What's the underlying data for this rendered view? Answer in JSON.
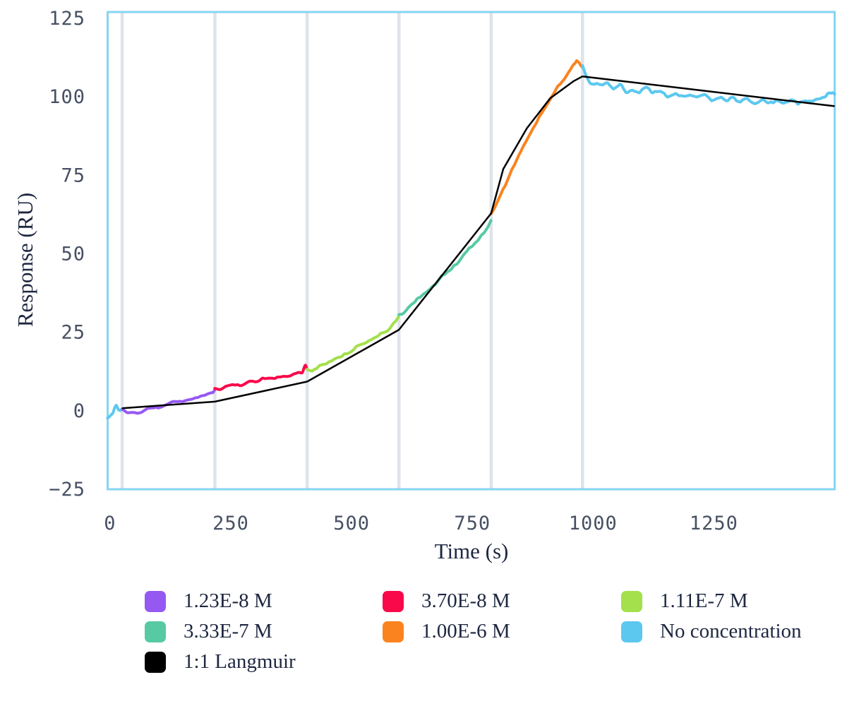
{
  "chart_data": {
    "type": "line",
    "title": "",
    "xlabel": "Time (s)",
    "ylabel": "Response (RU)",
    "xlim": [
      -5,
      1500
    ],
    "ylim": [
      -25,
      127
    ],
    "x_ticks": [
      {
        "value": 0,
        "label": "0"
      },
      {
        "value": 250,
        "label": "250"
      },
      {
        "value": 500,
        "label": "500"
      },
      {
        "value": 750,
        "label": "750"
      },
      {
        "value": 1000,
        "label": "1000"
      },
      {
        "value": 1250,
        "label": "1250"
      }
    ],
    "y_ticks": [
      {
        "value": 125,
        "label": "125"
      },
      {
        "value": 100,
        "label": "100"
      },
      {
        "value": 75,
        "label": "75"
      },
      {
        "value": 50,
        "label": "50"
      },
      {
        "value": 25,
        "label": "25"
      },
      {
        "value": 0,
        "label": "0"
      },
      {
        "value": -25,
        "label": "−25"
      }
    ],
    "grid": "vertical-injection-markers",
    "grid_times": [
      25,
      217,
      408,
      598,
      789,
      978
    ],
    "legend_position": "bottom",
    "legend": [
      {
        "label": "1.23E-8 M",
        "color": "#9559f2"
      },
      {
        "label": "3.70E-8 M",
        "color": "#f9094a"
      },
      {
        "label": "1.11E-7 M",
        "color": "#a3e04b"
      },
      {
        "label": "3.33E-7 M",
        "color": "#57c9a3"
      },
      {
        "label": "1.00E-6 M",
        "color": "#fa831f"
      },
      {
        "label": "No concentration",
        "color": "#5cc8ef"
      },
      {
        "label": "1:1 Langmuir",
        "color": "#000000"
      }
    ],
    "series": [
      {
        "name": "No concentration",
        "segment": "baseline",
        "color": "#5cc8ef",
        "noise_amp": 0.5,
        "noise_seed": 11,
        "points": [
          [
            -5,
            -2.3
          ],
          [
            0,
            -1.6
          ],
          [
            6,
            -0.6
          ],
          [
            10,
            1.2
          ],
          [
            13,
            1.7
          ],
          [
            17,
            0.5
          ],
          [
            21,
            0.1
          ],
          [
            25,
            0.5
          ]
        ]
      },
      {
        "name": "1.23E-8 M",
        "segment": "injection-1",
        "color": "#9559f2",
        "noise_amp": 0.55,
        "noise_seed": 21,
        "points": [
          [
            25,
            0.4
          ],
          [
            35,
            -0.9
          ],
          [
            50,
            -1.1
          ],
          [
            65,
            -0.4
          ],
          [
            80,
            0.6
          ],
          [
            95,
            1.3
          ],
          [
            110,
            1.6
          ],
          [
            125,
            2.4
          ],
          [
            140,
            3.3
          ],
          [
            150,
            3.0
          ],
          [
            165,
            3.9
          ],
          [
            180,
            4.4
          ],
          [
            195,
            4.7
          ],
          [
            205,
            5.3
          ],
          [
            213,
            5.6
          ],
          [
            217,
            6.6
          ]
        ]
      },
      {
        "name": "3.70E-8 M",
        "segment": "injection-2",
        "color": "#f9094a",
        "noise_amp": 0.5,
        "noise_seed": 31,
        "points": [
          [
            217,
            7.1
          ],
          [
            228,
            6.9
          ],
          [
            240,
            7.6
          ],
          [
            255,
            8.0
          ],
          [
            270,
            8.2
          ],
          [
            285,
            9.0
          ],
          [
            300,
            9.4
          ],
          [
            315,
            10.2
          ],
          [
            330,
            10.6
          ],
          [
            345,
            10.7
          ],
          [
            360,
            11.3
          ],
          [
            375,
            11.4
          ],
          [
            388,
            11.9
          ],
          [
            398,
            12.1
          ],
          [
            404,
            14.8
          ],
          [
            408,
            13.4
          ]
        ]
      },
      {
        "name": "1.11E-7 M",
        "segment": "injection-3",
        "color": "#a3e04b",
        "noise_amp": 0.6,
        "noise_seed": 41,
        "points": [
          [
            408,
            13.2
          ],
          [
            418,
            12.5
          ],
          [
            430,
            13.8
          ],
          [
            445,
            15.2
          ],
          [
            460,
            16.3
          ],
          [
            475,
            17.4
          ],
          [
            490,
            18.6
          ],
          [
            505,
            19.7
          ],
          [
            520,
            20.9
          ],
          [
            535,
            22.1
          ],
          [
            550,
            23.3
          ],
          [
            565,
            24.6
          ],
          [
            578,
            26.3
          ],
          [
            588,
            28.0
          ],
          [
            594,
            29.3
          ],
          [
            598,
            30.3
          ]
        ]
      },
      {
        "name": "3.33E-7 M",
        "segment": "injection-4",
        "color": "#57c9a3",
        "noise_amp": 0.6,
        "noise_seed": 51,
        "points": [
          [
            598,
            30.5
          ],
          [
            608,
            31.4
          ],
          [
            622,
            33.3
          ],
          [
            636,
            35.2
          ],
          [
            650,
            37.2
          ],
          [
            664,
            39.2
          ],
          [
            678,
            41.2
          ],
          [
            692,
            43.3
          ],
          [
            706,
            45.4
          ],
          [
            720,
            47.6
          ],
          [
            734,
            50.0
          ],
          [
            748,
            52.2
          ],
          [
            760,
            54.0
          ],
          [
            772,
            56.2
          ],
          [
            782,
            58.2
          ],
          [
            789,
            60.8
          ]
        ]
      },
      {
        "name": "1.00E-6 M",
        "segment": "injection-5",
        "color": "#fa831f",
        "noise_amp": 0.7,
        "noise_seed": 61,
        "points": [
          [
            789,
            62.5
          ],
          [
            798,
            65.5
          ],
          [
            810,
            69.5
          ],
          [
            822,
            73.5
          ],
          [
            834,
            77.5
          ],
          [
            846,
            81.5
          ],
          [
            858,
            85.0
          ],
          [
            870,
            88.5
          ],
          [
            882,
            92.0
          ],
          [
            894,
            95.0
          ],
          [
            906,
            98.0
          ],
          [
            918,
            101.0
          ],
          [
            930,
            103.5
          ],
          [
            942,
            106.0
          ],
          [
            952,
            108.5
          ],
          [
            960,
            110.5
          ],
          [
            966,
            112.0
          ],
          [
            971,
            111.2
          ],
          [
            975,
            110.2
          ],
          [
            978,
            109.8
          ]
        ]
      },
      {
        "name": "No concentration",
        "segment": "dissociation",
        "color": "#5cc8ef",
        "noise_amp": 0.9,
        "noise_seed": 71,
        "points": [
          [
            978,
            109.5
          ],
          [
            984,
            107.0
          ],
          [
            992,
            104.8
          ],
          [
            1002,
            103.6
          ],
          [
            1015,
            103.2
          ],
          [
            1030,
            104.2
          ],
          [
            1042,
            102.2
          ],
          [
            1055,
            103.6
          ],
          [
            1068,
            101.8
          ],
          [
            1082,
            102.8
          ],
          [
            1096,
            101.2
          ],
          [
            1110,
            102.2
          ],
          [
            1125,
            100.8
          ],
          [
            1140,
            101.6
          ],
          [
            1155,
            100.2
          ],
          [
            1170,
            101.2
          ],
          [
            1185,
            100.0
          ],
          [
            1200,
            100.6
          ],
          [
            1215,
            99.4
          ],
          [
            1230,
            100.4
          ],
          [
            1245,
            98.8
          ],
          [
            1260,
            99.8
          ],
          [
            1275,
            98.6
          ],
          [
            1290,
            99.4
          ],
          [
            1305,
            98.4
          ],
          [
            1320,
            99.2
          ],
          [
            1335,
            98.0
          ],
          [
            1350,
            98.8
          ],
          [
            1365,
            97.8
          ],
          [
            1380,
            98.6
          ],
          [
            1395,
            98.2
          ],
          [
            1410,
            99.0
          ],
          [
            1425,
            98.0
          ],
          [
            1440,
            98.8
          ],
          [
            1455,
            98.4
          ],
          [
            1470,
            99.0
          ],
          [
            1485,
            100.2
          ],
          [
            1495,
            101.0
          ],
          [
            1500,
            100.4
          ]
        ]
      }
    ],
    "fit": {
      "name": "1:1 Langmuir",
      "color": "#000000",
      "points": [
        [
          25,
          0.8
        ],
        [
          217,
          2.9
        ],
        [
          408,
          9.3
        ],
        [
          598,
          25.8
        ],
        [
          789,
          62.9
        ],
        [
          814,
          77.0
        ],
        [
          863,
          90.0
        ],
        [
          911,
          99.5
        ],
        [
          960,
          105.0
        ],
        [
          978,
          106.5
        ],
        [
          1500,
          97.0
        ]
      ]
    }
  },
  "styles": {
    "plot_border_color": "#85d6f2",
    "gridline_color": "#dee3ec",
    "tick_color": "#475063",
    "text_color": "#1e2741",
    "background": "#ffffff"
  }
}
